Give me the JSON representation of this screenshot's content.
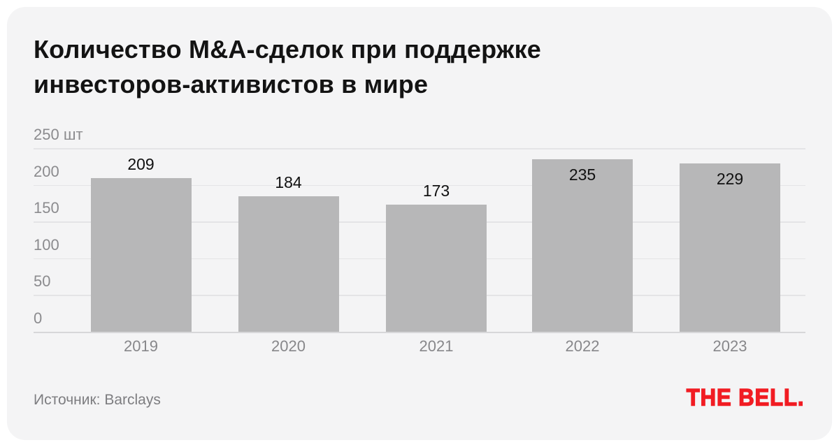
{
  "page": {
    "title_lines": [
      "Количество M&A-сделок при поддержке",
      "инвесторов-активистов в мире"
    ],
    "source": "Источник: Barclays",
    "logo": "THE BELL."
  },
  "chart_data": {
    "type": "bar",
    "title": "Количество M&A-сделок при поддержке инвесторов-активистов в мире",
    "categories": [
      "2019",
      "2020",
      "2021",
      "2022",
      "2023"
    ],
    "values": [
      209,
      184,
      173,
      235,
      229
    ],
    "unit": "шт",
    "ylabel": "шт",
    "xlabel": "",
    "ylim": [
      0,
      250
    ],
    "yticks": [
      0,
      50,
      100,
      150,
      200,
      250
    ],
    "grid": "horizontal",
    "legend": "none",
    "source": "Источник: Barclays",
    "colors": {
      "bar": "#b7b7b8",
      "value_label": "#111111",
      "axis_text": "#8b8b8e",
      "gridline": "#e4e4e6",
      "card_background": "#f4f4f5",
      "page_background": "#ffffff",
      "title_text": "#131313",
      "logo_red": "#f11c23"
    }
  }
}
